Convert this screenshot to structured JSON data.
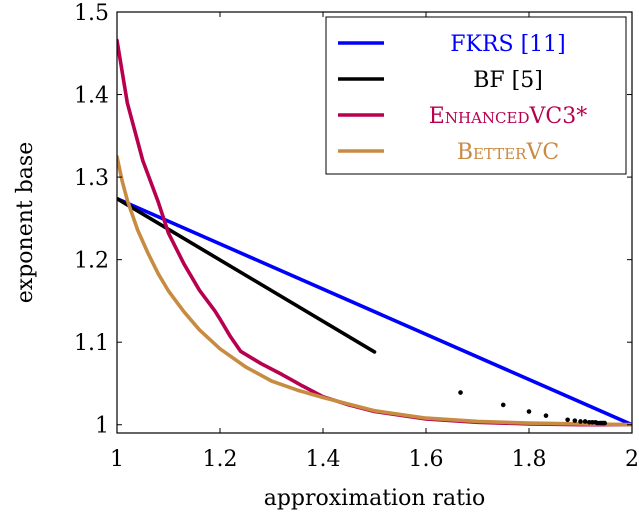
{
  "chart_data": {
    "type": "line",
    "xlabel": "approximation ratio",
    "ylabel": "exponent base",
    "xlim": [
      1,
      2
    ],
    "ylim": [
      0.99,
      1.5
    ],
    "x_ticks": [
      "1",
      "1.2",
      "1.4",
      "1.6",
      "1.8",
      "2"
    ],
    "y_ticks": [
      "1",
      "1.1",
      "1.2",
      "1.3",
      "1.4",
      "1.5"
    ],
    "grid": false,
    "legend_position": "top-right",
    "series": [
      {
        "name": "FKRS [11]",
        "color": "#0000ff",
        "x": [
          1.0,
          2.0
        ],
        "y": [
          1.2738,
          1.0
        ]
      },
      {
        "name": "BF [5]",
        "color": "#000000",
        "x": [
          1.0,
          1.5
        ],
        "y": [
          1.2738,
          1.0883
        ]
      },
      {
        "name": "EnhancedVC3*",
        "color": "#b8004f",
        "x": [
          1.0,
          1.02,
          1.05,
          1.08,
          1.1,
          1.13,
          1.16,
          1.19,
          1.2,
          1.22,
          1.24,
          1.28,
          1.32,
          1.36,
          1.4,
          1.45,
          1.5,
          1.6,
          1.7,
          1.8,
          1.9,
          2.0
        ],
        "y": [
          1.4656,
          1.39,
          1.32,
          1.27,
          1.232,
          1.195,
          1.163,
          1.138,
          1.128,
          1.107,
          1.089,
          1.074,
          1.061,
          1.047,
          1.034,
          1.024,
          1.016,
          1.007,
          1.003,
          1.001,
          1.0,
          1.0
        ]
      },
      {
        "name": "BetterVC",
        "color": "#c88b42",
        "x": [
          1.0,
          1.01,
          1.02,
          1.04,
          1.06,
          1.08,
          1.1,
          1.13,
          1.16,
          1.2,
          1.25,
          1.3,
          1.35,
          1.4,
          1.5,
          1.6,
          1.7,
          1.8,
          1.9,
          2.0
        ],
        "y": [
          1.3247,
          1.295,
          1.272,
          1.236,
          1.208,
          1.183,
          1.162,
          1.137,
          1.115,
          1.092,
          1.07,
          1.053,
          1.042,
          1.033,
          1.017,
          1.008,
          1.004,
          1.002,
          1.001,
          1.0
        ]
      }
    ],
    "scatter": {
      "color": "#000000",
      "x": [
        1.667,
        1.75,
        1.8,
        1.833,
        1.875,
        1.889,
        1.9,
        1.909,
        1.917,
        1.923,
        1.929,
        1.933,
        1.938,
        1.941,
        1.944,
        1.947
      ],
      "y": [
        1.039,
        1.024,
        1.016,
        1.011,
        1.006,
        1.005,
        1.004,
        1.004,
        1.003,
        1.003,
        1.003,
        1.002,
        1.002,
        1.002,
        1.002,
        1.002
      ]
    }
  }
}
